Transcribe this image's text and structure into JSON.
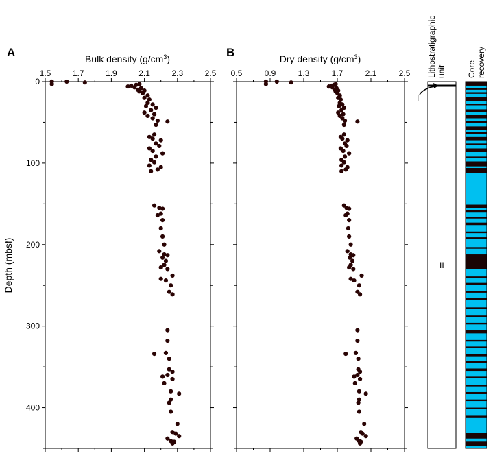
{
  "panel_a": {
    "label": "A",
    "x_title": "Bulk density (g/cm",
    "x_title_sup": "3",
    "x_title_end": ")"
  },
  "panel_b": {
    "label": "B",
    "x_title": "Dry density (g/cm",
    "x_title_sup": "3",
    "x_title_end": ")"
  },
  "y_title": "Depth (mbsf)",
  "litho": {
    "header_line1": "Lithostratigraphic",
    "header_line2": "unit",
    "unit_1": "I",
    "unit_2": "II"
  },
  "recovery": {
    "header_line1": "Core",
    "header_line2": "recovery"
  },
  "colors": {
    "points": "#2a0404",
    "recovered": "#1a0505",
    "gap": "#00c0f0"
  },
  "chart_data": [
    {
      "type": "scatter",
      "title": "",
      "xlabel": "Bulk density (g/cm3)",
      "ylabel": "Depth (mbsf)",
      "xlim": [
        1.5,
        2.5
      ],
      "ylim": [
        450,
        0
      ],
      "x_ticks": [
        "1.5",
        "1.7",
        "1.9",
        "2.1",
        "2.3",
        "2.5"
      ],
      "y_ticks": [
        "0",
        "100",
        "200",
        "300",
        "400"
      ],
      "x_tick_values": [
        1.5,
        1.7,
        1.9,
        2.1,
        2.3,
        2.5
      ],
      "y_tick_values": [
        0,
        100,
        200,
        300,
        400
      ],
      "series": [
        {
          "points": [
            [
              1.54,
              0
            ],
            [
              1.54,
              3
            ],
            [
              1.63,
              0
            ],
            [
              1.74,
              1
            ],
            [
              2.0,
              6
            ],
            [
              2.02,
              5
            ],
            [
              2.04,
              7
            ],
            [
              2.05,
              4
            ],
            [
              2.06,
              10
            ],
            [
              2.07,
              3
            ],
            [
              2.07,
              12
            ],
            [
              2.08,
              8
            ],
            [
              2.09,
              14
            ],
            [
              2.1,
              11
            ],
            [
              2.12,
              17
            ],
            [
              2.1,
              20
            ],
            [
              2.13,
              22
            ],
            [
              2.12,
              26
            ],
            [
              2.15,
              28
            ],
            [
              2.11,
              30
            ],
            [
              2.17,
              32
            ],
            [
              2.14,
              35
            ],
            [
              2.1,
              38
            ],
            [
              2.16,
              40
            ],
            [
              2.12,
              42
            ],
            [
              2.15,
              45
            ],
            [
              2.18,
              48
            ],
            [
              2.24,
              49
            ],
            [
              2.17,
              53
            ],
            [
              2.16,
              65
            ],
            [
              2.13,
              68
            ],
            [
              2.15,
              70
            ],
            [
              2.2,
              72
            ],
            [
              2.17,
              76
            ],
            [
              2.19,
              79
            ],
            [
              2.13,
              82
            ],
            [
              2.15,
              85
            ],
            [
              2.21,
              88
            ],
            [
              2.17,
              92
            ],
            [
              2.14,
              96
            ],
            [
              2.16,
              99
            ],
            [
              2.13,
              103
            ],
            [
              2.2,
              105
            ],
            [
              2.18,
              108
            ],
            [
              2.14,
              110
            ],
            [
              2.16,
              152
            ],
            [
              2.19,
              155
            ],
            [
              2.21,
              156
            ],
            [
              2.2,
              162
            ],
            [
              2.18,
              164
            ],
            [
              2.21,
              170
            ],
            [
              2.2,
              180
            ],
            [
              2.21,
              190
            ],
            [
              2.22,
              200
            ],
            [
              2.19,
              208
            ],
            [
              2.22,
              212
            ],
            [
              2.24,
              213
            ],
            [
              2.21,
              216
            ],
            [
              2.23,
              220
            ],
            [
              2.22,
              225
            ],
            [
              2.2,
              228
            ],
            [
              2.24,
              230
            ],
            [
              2.27,
              238
            ],
            [
              2.2,
              242
            ],
            [
              2.23,
              244
            ],
            [
              2.26,
              250
            ],
            [
              2.25,
              258
            ],
            [
              2.27,
              261
            ],
            [
              2.24,
              305
            ],
            [
              2.24,
              318
            ],
            [
              2.16,
              334
            ],
            [
              2.23,
              333
            ],
            [
              2.25,
              340
            ],
            [
              2.25,
              353
            ],
            [
              2.27,
              356
            ],
            [
              2.24,
              360
            ],
            [
              2.21,
              362
            ],
            [
              2.27,
              365
            ],
            [
              2.22,
              370
            ],
            [
              2.26,
              380
            ],
            [
              2.31,
              383
            ],
            [
              2.26,
              390
            ],
            [
              2.25,
              394
            ],
            [
              2.26,
              405
            ],
            [
              2.3,
              420
            ],
            [
              2.27,
              430
            ],
            [
              2.29,
              432
            ],
            [
              2.31,
              435
            ],
            [
              2.24,
              438
            ],
            [
              2.26,
              441
            ],
            [
              2.28,
              442
            ],
            [
              2.27,
              444
            ]
          ]
        }
      ]
    },
    {
      "type": "scatter",
      "title": "",
      "xlabel": "Dry density (g/cm3)",
      "ylabel": "Depth (mbsf)",
      "xlim": [
        0.5,
        2.5
      ],
      "ylim": [
        450,
        0
      ],
      "x_ticks": [
        "0.5",
        "0.9",
        "1.3",
        "1.7",
        "2.1",
        "2.5"
      ],
      "x_tick_values": [
        0.5,
        0.9,
        1.3,
        1.7,
        2.1,
        2.5
      ],
      "series": [
        {
          "points": [
            [
              0.85,
              0
            ],
            [
              0.85,
              3
            ],
            [
              0.98,
              0
            ],
            [
              1.15,
              1
            ],
            [
              1.6,
              6
            ],
            [
              1.63,
              5
            ],
            [
              1.64,
              7
            ],
            [
              1.66,
              4
            ],
            [
              1.67,
              10
            ],
            [
              1.68,
              3
            ],
            [
              1.68,
              12
            ],
            [
              1.69,
              8
            ],
            [
              1.7,
              14
            ],
            [
              1.71,
              11
            ],
            [
              1.73,
              17
            ],
            [
              1.71,
              20
            ],
            [
              1.74,
              22
            ],
            [
              1.73,
              26
            ],
            [
              1.76,
              28
            ],
            [
              1.72,
              30
            ],
            [
              1.78,
              32
            ],
            [
              1.75,
              35
            ],
            [
              1.71,
              38
            ],
            [
              1.77,
              40
            ],
            [
              1.73,
              42
            ],
            [
              1.76,
              45
            ],
            [
              1.79,
              48
            ],
            [
              1.94,
              49
            ],
            [
              1.78,
              53
            ],
            [
              1.78,
              65
            ],
            [
              1.74,
              68
            ],
            [
              1.76,
              70
            ],
            [
              1.82,
              72
            ],
            [
              1.79,
              76
            ],
            [
              1.81,
              79
            ],
            [
              1.74,
              82
            ],
            [
              1.77,
              85
            ],
            [
              1.84,
              88
            ],
            [
              1.79,
              92
            ],
            [
              1.75,
              96
            ],
            [
              1.78,
              99
            ],
            [
              1.75,
              103
            ],
            [
              1.82,
              105
            ],
            [
              1.8,
              108
            ],
            [
              1.75,
              110
            ],
            [
              1.78,
              152
            ],
            [
              1.81,
              155
            ],
            [
              1.84,
              156
            ],
            [
              1.82,
              162
            ],
            [
              1.8,
              164
            ],
            [
              1.84,
              170
            ],
            [
              1.83,
              180
            ],
            [
              1.84,
              190
            ],
            [
              1.86,
              200
            ],
            [
              1.82,
              208
            ],
            [
              1.86,
              212
            ],
            [
              1.89,
              213
            ],
            [
              1.85,
              216
            ],
            [
              1.88,
              220
            ],
            [
              1.86,
              225
            ],
            [
              1.84,
              228
            ],
            [
              1.89,
              230
            ],
            [
              1.99,
              238
            ],
            [
              1.86,
              242
            ],
            [
              1.9,
              244
            ],
            [
              1.96,
              250
            ],
            [
              1.94,
              258
            ],
            [
              1.97,
              261
            ],
            [
              1.94,
              305
            ],
            [
              1.94,
              318
            ],
            [
              1.8,
              334
            ],
            [
              1.92,
              333
            ],
            [
              1.95,
              340
            ],
            [
              1.95,
              353
            ],
            [
              1.97,
              356
            ],
            [
              1.94,
              360
            ],
            [
              1.9,
              362
            ],
            [
              1.97,
              365
            ],
            [
              1.91,
              370
            ],
            [
              1.96,
              380
            ],
            [
              2.04,
              383
            ],
            [
              1.96,
              390
            ],
            [
              1.95,
              394
            ],
            [
              1.96,
              405
            ],
            [
              2.02,
              420
            ],
            [
              1.98,
              430
            ],
            [
              2.0,
              432
            ],
            [
              2.04,
              435
            ],
            [
              1.93,
              438
            ],
            [
              1.96,
              441
            ],
            [
              1.98,
              442
            ],
            [
              1.97,
              444
            ]
          ]
        }
      ]
    }
  ],
  "recovery_intervals": [
    [
      0,
      5
    ],
    [
      8,
      10
    ],
    [
      13,
      15
    ],
    [
      19,
      24
    ],
    [
      27,
      29
    ],
    [
      34,
      37
    ],
    [
      41,
      45
    ],
    [
      48,
      51
    ],
    [
      55,
      59
    ],
    [
      62,
      64
    ],
    [
      68,
      72
    ],
    [
      76,
      78
    ],
    [
      82,
      86
    ],
    [
      92,
      94
    ],
    [
      98,
      104
    ],
    [
      106,
      112
    ],
    [
      151,
      155
    ],
    [
      158,
      160
    ],
    [
      166,
      168
    ],
    [
      173,
      176
    ],
    [
      184,
      186
    ],
    [
      191,
      193
    ],
    [
      203,
      205
    ],
    [
      212,
      230
    ],
    [
      239,
      241
    ],
    [
      247,
      249
    ],
    [
      257,
      259
    ],
    [
      265,
      268
    ],
    [
      277,
      279
    ],
    [
      287,
      289
    ],
    [
      296,
      298
    ],
    [
      305,
      309
    ],
    [
      317,
      319
    ],
    [
      325,
      327
    ],
    [
      334,
      337
    ],
    [
      343,
      345
    ],
    [
      352,
      355
    ],
    [
      362,
      364
    ],
    [
      372,
      374
    ],
    [
      381,
      383
    ],
    [
      390,
      392
    ],
    [
      400,
      402
    ],
    [
      410,
      412
    ],
    [
      431,
      438
    ],
    [
      441,
      447
    ]
  ]
}
